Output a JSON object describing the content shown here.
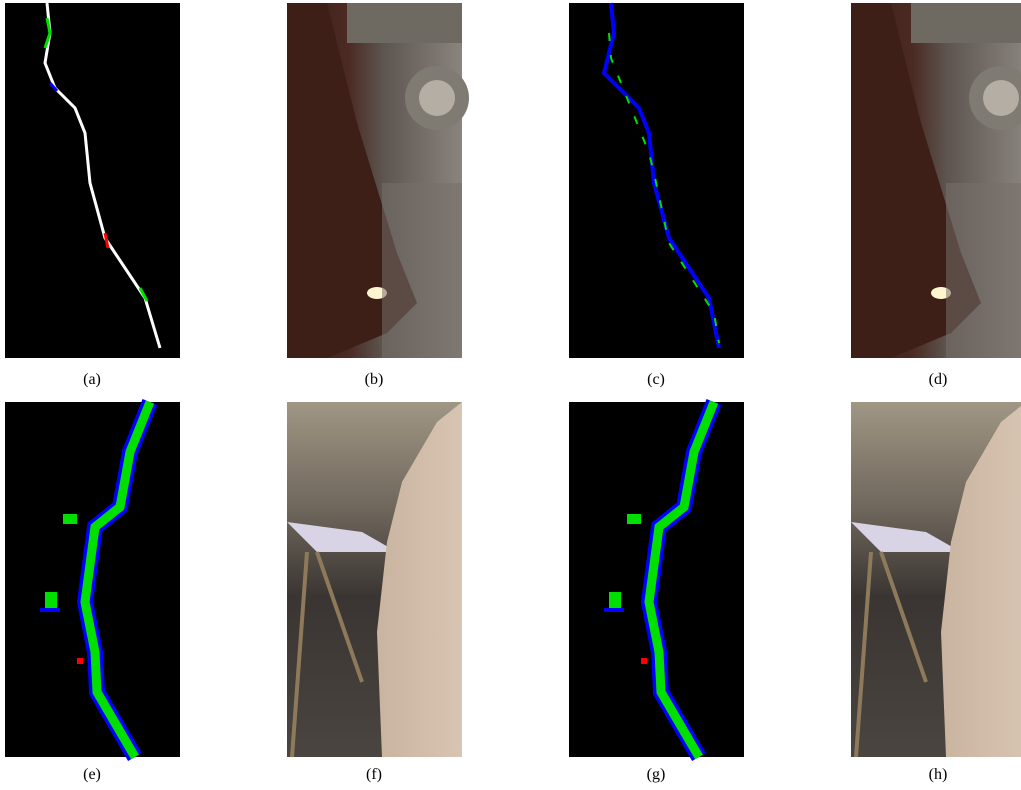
{
  "figure": {
    "panels": [
      {
        "caption": "(a)"
      },
      {
        "caption": "(b)"
      },
      {
        "caption": "(c)"
      },
      {
        "caption": "(d)"
      },
      {
        "caption": "(e)"
      },
      {
        "caption": "(f)"
      },
      {
        "caption": "(g)"
      },
      {
        "caption": "(h)"
      }
    ]
  }
}
